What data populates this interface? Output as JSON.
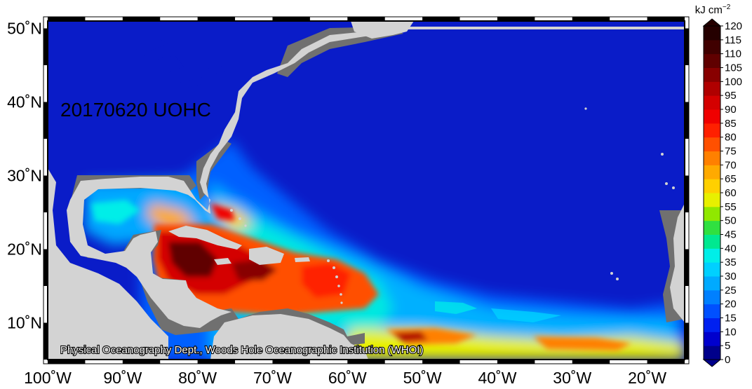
{
  "map": {
    "date_label": "20170620 UOHC",
    "credit": "Physical Oceanography Dept., Woods Hole Oceanographic Institution (WHOI)",
    "colorbar": {
      "unit_base": "kJ cm",
      "unit_exp": "−2",
      "ticks": [
        "0",
        "5",
        "10",
        "15",
        "20",
        "25",
        "30",
        "35",
        "40",
        "45",
        "50",
        "55",
        "60",
        "65",
        "70",
        "75",
        "80",
        "85",
        "90",
        "95",
        "100",
        "105",
        "110",
        "115",
        "120"
      ],
      "colors": [
        "#00008b",
        "#0000cd",
        "#0020f0",
        "#0050ff",
        "#0080ff",
        "#00aaff",
        "#00d0ff",
        "#00eee8",
        "#00e890",
        "#30e040",
        "#90e800",
        "#e8f000",
        "#ffd000",
        "#ffaa00",
        "#ff8000",
        "#ff5000",
        "#ff2000",
        "#f00000",
        "#d40000",
        "#b00000",
        "#880000",
        "#600000",
        "#400000",
        "#250000"
      ]
    },
    "x_axis": {
      "labels": [
        "100˚W",
        "90˚W",
        "80˚W",
        "70˚W",
        "60˚W",
        "50˚W",
        "40˚W",
        "30˚W",
        "20˚W"
      ]
    },
    "y_axis": {
      "labels": [
        "50˚N",
        "40˚N",
        "30˚N",
        "20˚N",
        "10˚N"
      ]
    },
    "extent": {
      "lon_min": -100,
      "lon_max": -15,
      "lat_min": 5,
      "lat_max": 51
    },
    "style": {
      "ocean_color": "#0a1cc8",
      "land_color": "#d3d3d3",
      "coast_mask_color": "#707070",
      "frame_color": "#000000"
    }
  }
}
